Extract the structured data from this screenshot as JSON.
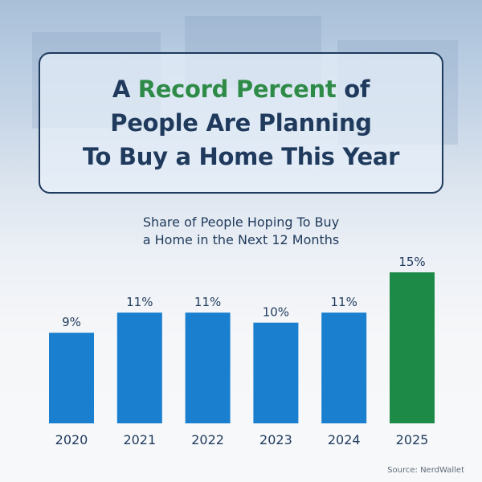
{
  "headline": {
    "line1_pre": "A ",
    "line1_highlight": "Record Percent",
    "line1_post": " of",
    "line2": "People Are Planning",
    "line3": "To Buy a Home This Year"
  },
  "source": "Source: NerdWallet",
  "colors": {
    "navy": "#1f3a5c",
    "highlight_green": "#2e8b47",
    "bar_blue": "#1a7fcf",
    "bar_green": "#1e8a48"
  },
  "chart_data": {
    "type": "bar",
    "title": "Share of People Hoping To Buy a Home in the Next 12 Months",
    "title_lines": [
      "Share of People Hoping To Buy",
      "a Home in the Next 12 Months"
    ],
    "categories": [
      "2020",
      "2021",
      "2022",
      "2023",
      "2024",
      "2025"
    ],
    "values": [
      9,
      11,
      11,
      10,
      11,
      15
    ],
    "value_labels": [
      "9%",
      "11%",
      "11%",
      "10%",
      "11%",
      "15%"
    ],
    "highlight_index": 5,
    "unit": "%",
    "ylim": [
      0,
      15
    ],
    "grid": false,
    "legend": "none"
  }
}
